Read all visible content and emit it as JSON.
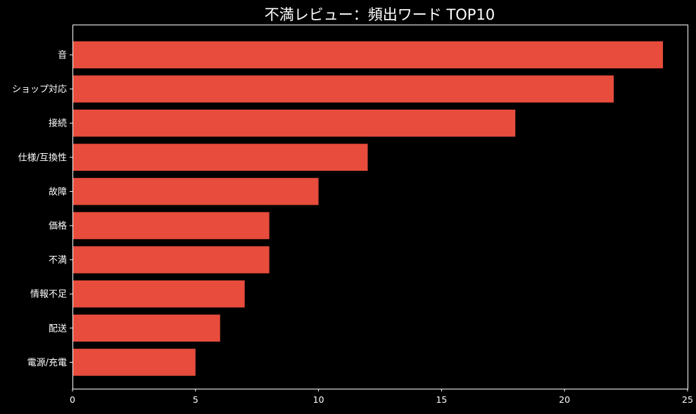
{
  "chart_data": {
    "type": "bar",
    "orientation": "horizontal",
    "title": "不満レビュー：頻出ワード TOP10",
    "xlabel": "",
    "ylabel": "",
    "categories": [
      "音",
      "ショップ対応",
      "接続",
      "仕様/互換性",
      "故障",
      "価格",
      "不満",
      "情報不足",
      "配送",
      "電源/充電"
    ],
    "values": [
      24,
      22,
      18,
      12,
      10,
      8,
      8,
      7,
      6,
      5
    ],
    "xlim": [
      0,
      25
    ],
    "xticks": [
      0,
      5,
      10,
      15,
      20,
      25
    ],
    "grid": false,
    "bar_color": "#e74c3c",
    "background_color": "#000000",
    "text_color": "#ffffff"
  }
}
